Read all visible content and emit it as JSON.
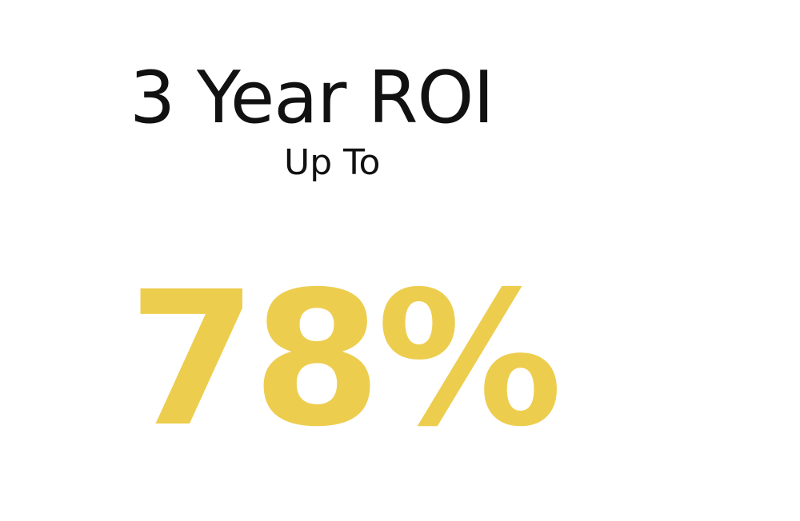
{
  "stat": {
    "headline": "3 Year ROI",
    "qualifier": "Up To",
    "value": "78%",
    "value_color": "#EDCD4E",
    "text_color": "#111111"
  }
}
